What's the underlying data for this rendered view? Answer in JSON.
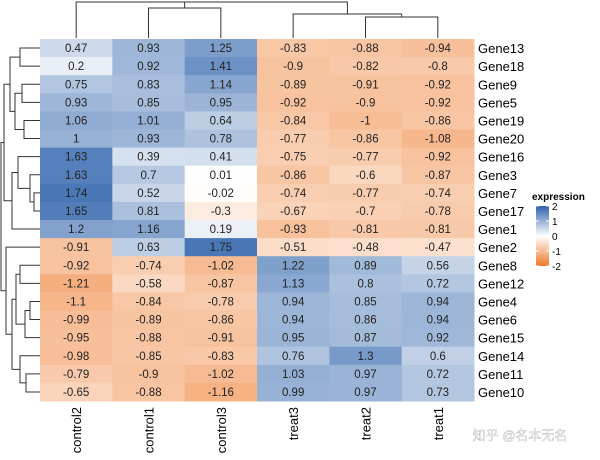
{
  "chart_data": {
    "type": "heatmap",
    "columns": [
      "control2",
      "control1",
      "control3",
      "treat3",
      "treat2",
      "treat1"
    ],
    "rows": [
      "Gene13",
      "Gene18",
      "Gene9",
      "Gene5",
      "Gene19",
      "Gene20",
      "Gene16",
      "Gene3",
      "Gene7",
      "Gene17",
      "Gene1",
      "Gene2",
      "Gene8",
      "Gene12",
      "Gene4",
      "Gene6",
      "Gene15",
      "Gene14",
      "Gene11",
      "Gene10"
    ],
    "values": [
      [
        0.47,
        0.93,
        1.25,
        -0.83,
        -0.88,
        -0.94
      ],
      [
        0.2,
        0.92,
        1.41,
        -0.9,
        -0.82,
        -0.8
      ],
      [
        0.75,
        0.83,
        1.14,
        -0.89,
        -0.91,
        -0.92
      ],
      [
        0.93,
        0.85,
        0.95,
        -0.92,
        -0.9,
        -0.92
      ],
      [
        1.06,
        1.01,
        0.64,
        -0.84,
        -1,
        -0.86
      ],
      [
        1,
        0.93,
        0.78,
        -0.77,
        -0.86,
        -1.08
      ],
      [
        1.63,
        0.39,
        0.41,
        -0.75,
        -0.77,
        -0.92
      ],
      [
        1.63,
        0.7,
        0.01,
        -0.86,
        -0.6,
        -0.87
      ],
      [
        1.74,
        0.52,
        -0.02,
        -0.74,
        -0.77,
        -0.74
      ],
      [
        1.65,
        0.81,
        -0.3,
        -0.67,
        -0.7,
        -0.78
      ],
      [
        1.2,
        1.16,
        0.19,
        -0.93,
        -0.81,
        -0.81
      ],
      [
        -0.91,
        0.63,
        1.75,
        -0.51,
        -0.48,
        -0.47
      ],
      [
        -0.92,
        -0.74,
        -1.02,
        1.22,
        0.89,
        0.56
      ],
      [
        -1.21,
        -0.58,
        -0.87,
        1.13,
        0.8,
        0.72
      ],
      [
        -1.1,
        -0.84,
        -0.78,
        0.94,
        0.85,
        0.94
      ],
      [
        -0.99,
        -0.89,
        -0.86,
        0.94,
        0.86,
        0.94
      ],
      [
        -0.95,
        -0.88,
        -0.91,
        0.95,
        0.87,
        0.92
      ],
      [
        -0.98,
        -0.85,
        -0.83,
        0.76,
        1.3,
        0.6
      ],
      [
        -0.79,
        -0.9,
        -1.02,
        1.03,
        0.97,
        0.72
      ],
      [
        -0.65,
        -0.88,
        -1.16,
        0.99,
        0.97,
        0.73
      ]
    ],
    "legend": {
      "title": "expression",
      "ticks": [
        "2",
        "1",
        "0",
        "-1",
        "-2"
      ],
      "range": [
        -2,
        2
      ],
      "colors": {
        "high": "#2f63ab",
        "mid": "#ffffff",
        "low": "#ee7a2a"
      }
    },
    "cell_labels": true,
    "row_dendrogram": true,
    "column_dendrogram": true
  },
  "watermark": "知乎 @名本无名"
}
